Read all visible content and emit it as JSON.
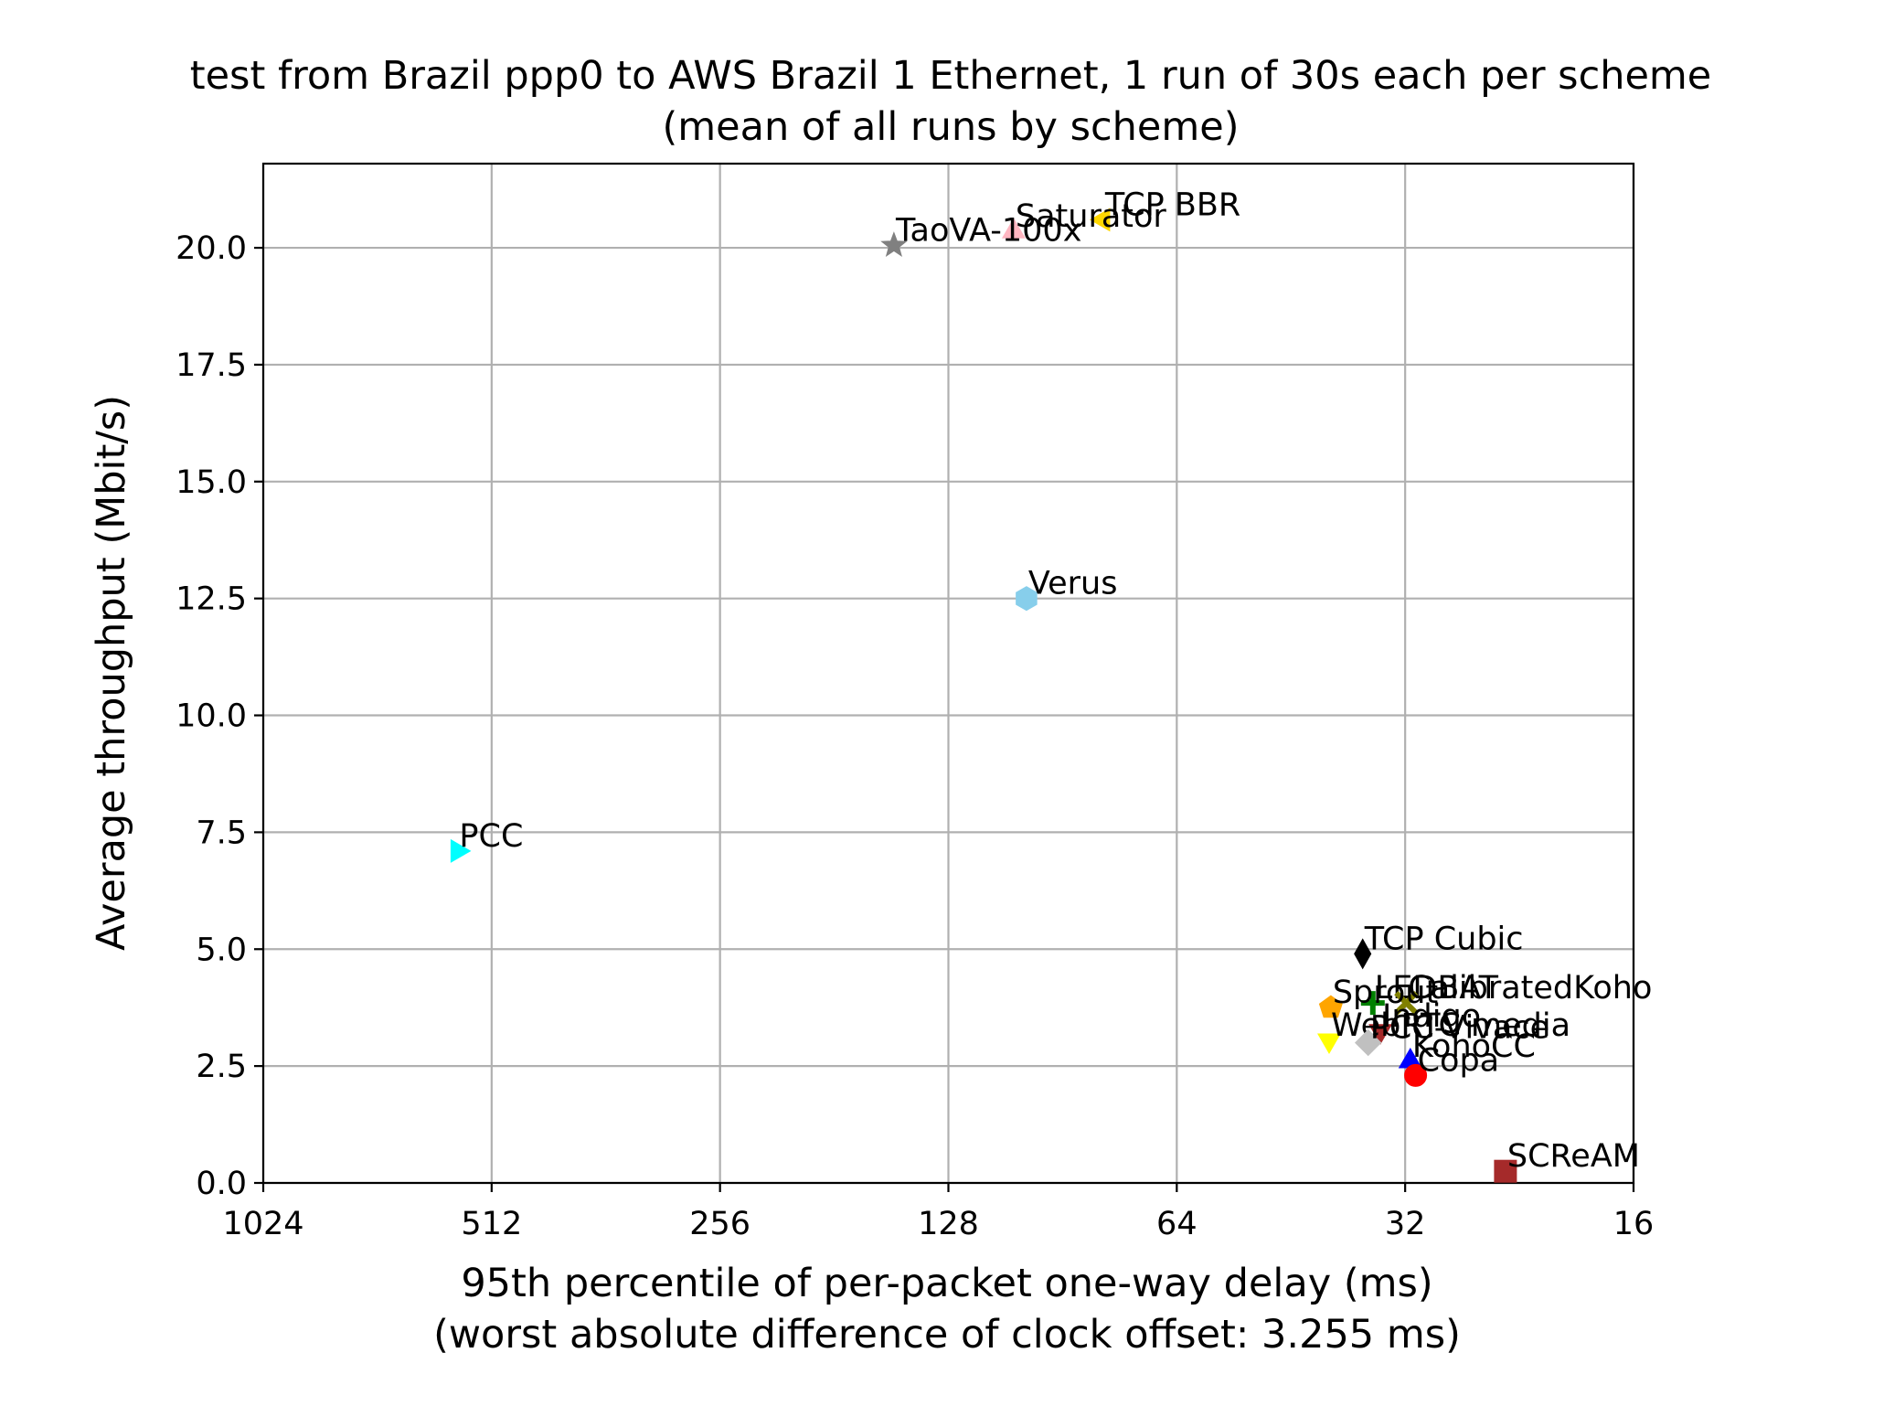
{
  "chart_data": {
    "type": "scatter",
    "title": "test from Brazil ppp0 to AWS Brazil 1 Ethernet, 1 run of 30s each per scheme",
    "subtitle": "(mean of all runs by scheme)",
    "xlabel": "95th percentile of per-packet one-way delay (ms)",
    "xlabel_note": "(worst absolute difference of clock offset: 3.255 ms)",
    "ylabel": "Average throughput (Mbit/s)",
    "x_scale": "log2",
    "x_inverted": true,
    "xlim": [
      1024,
      16
    ],
    "ylim": [
      0,
      21.8
    ],
    "x_ticks": [
      1024,
      512,
      256,
      128,
      64,
      32,
      16
    ],
    "x_tick_labels": [
      "1024",
      "512",
      "256",
      "128",
      "64",
      "32",
      "16"
    ],
    "y_ticks": [
      0,
      2.5,
      5,
      7.5,
      10,
      12.5,
      15,
      17.5,
      20
    ],
    "y_tick_labels": [
      "0.0",
      "2.5",
      "5.0",
      "7.5",
      "10.0",
      "12.5",
      "15.0",
      "17.5",
      "20.0"
    ],
    "grid": true,
    "points": [
      {
        "label": "TCP BBR",
        "x": 80,
        "y": 20.6,
        "color": "#ffd700",
        "marker": "triangle-left"
      },
      {
        "label": "Saturator",
        "x": 105,
        "y": 20.35,
        "color": "#ffb6c1",
        "marker": "triangle-up"
      },
      {
        "label": "TaoVA-100x",
        "x": 151,
        "y": 20.05,
        "color": "#808080",
        "marker": "star"
      },
      {
        "label": "Verus",
        "x": 101,
        "y": 12.5,
        "color": "#87ceeb",
        "marker": "hexagon"
      },
      {
        "label": "PCC",
        "x": 568,
        "y": 7.1,
        "color": "#00ffff",
        "marker": "triangle-right"
      },
      {
        "label": "TCP Cubic",
        "x": 36.4,
        "y": 4.9,
        "color": "#000000",
        "marker": "thin-diamond"
      },
      {
        "label": "LEDBAT",
        "x": 35.3,
        "y": 3.85,
        "color": "#008000",
        "marker": "plus"
      },
      {
        "label": "CalibratedKoho",
        "x": 31.9,
        "y": 3.85,
        "color": "#808000",
        "marker": "x"
      },
      {
        "label": "Sprout",
        "x": 40.1,
        "y": 3.75,
        "color": "#ffa500",
        "marker": "pentagon"
      },
      {
        "label": "Indigo",
        "x": 34.5,
        "y": 3.25,
        "color": "#a52a2a",
        "marker": "triangle-down"
      },
      {
        "label": "WebRTC media",
        "x": 40.3,
        "y": 3.05,
        "color": "#ffff00",
        "marker": "triangle-down"
      },
      {
        "label": "PCC-Vivace",
        "x": 35.8,
        "y": 3.0,
        "color": "#c0c0c0",
        "marker": "diamond"
      },
      {
        "label": "KohoCC",
        "x": 31.5,
        "y": 2.6,
        "color": "#0000ff",
        "marker": "triangle-up"
      },
      {
        "label": "Copa",
        "x": 31.0,
        "y": 2.3,
        "color": "#ff0000",
        "marker": "circle"
      },
      {
        "label": "SCReAM",
        "x": 23.6,
        "y": 0.25,
        "color": "#a52a2a",
        "marker": "square"
      }
    ]
  }
}
